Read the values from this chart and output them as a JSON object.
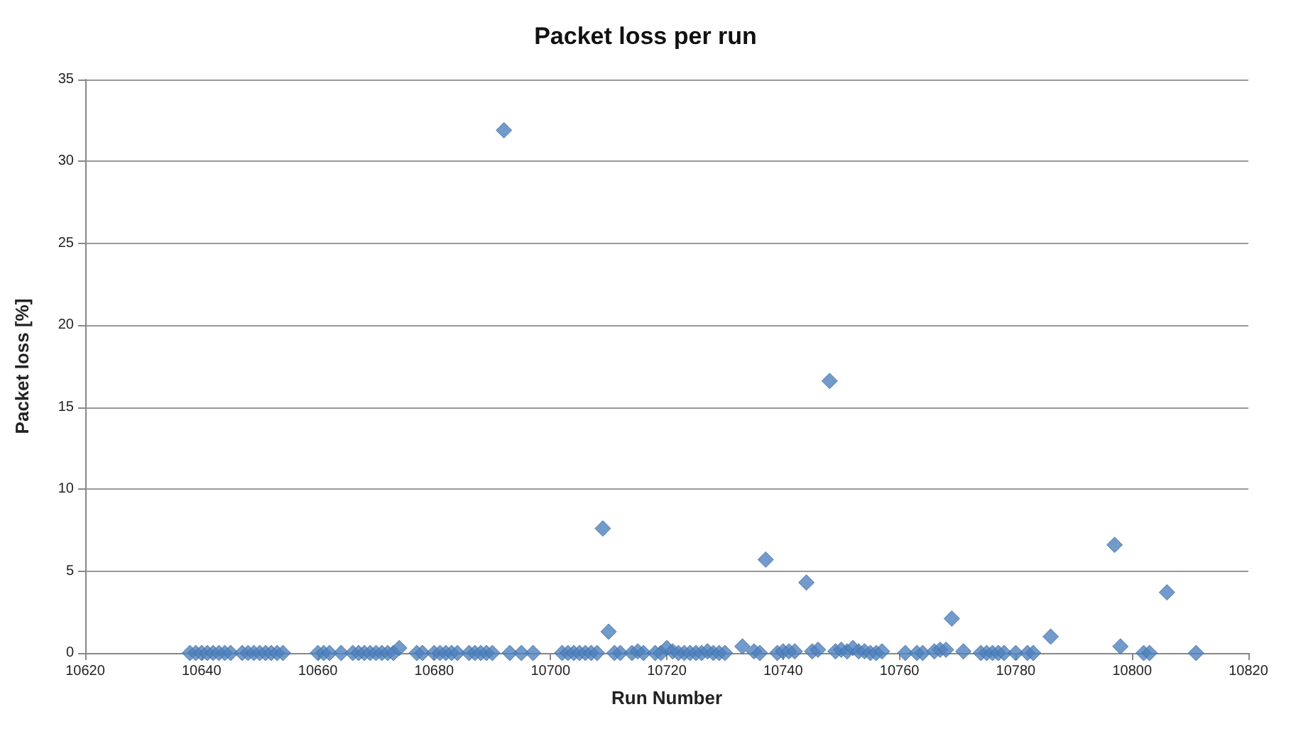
{
  "chart_data": {
    "type": "scatter",
    "title": "Packet loss per run",
    "xlabel": "Run Number",
    "ylabel": "Packet loss [%]",
    "x": [
      10638,
      10639,
      10640,
      10641,
      10642,
      10643,
      10644,
      10645,
      10647,
      10648,
      10649,
      10650,
      10651,
      10652,
      10653,
      10654,
      10660,
      10661,
      10662,
      10664,
      10666,
      10667,
      10668,
      10669,
      10670,
      10671,
      10672,
      10673,
      10674,
      10677,
      10678,
      10680,
      10681,
      10682,
      10683,
      10684,
      10686,
      10687,
      10688,
      10689,
      10690,
      10692,
      10693,
      10695,
      10697,
      10702,
      10703,
      10704,
      10705,
      10706,
      10707,
      10708,
      10709,
      10710,
      10711,
      10712,
      10714,
      10715,
      10716,
      10718,
      10719,
      10720,
      10721,
      10722,
      10723,
      10724,
      10725,
      10726,
      10727,
      10728,
      10729,
      10730,
      10733,
      10735,
      10736,
      10737,
      10739,
      10740,
      10741,
      10742,
      10744,
      10745,
      10746,
      10748,
      10749,
      10750,
      10751,
      10752,
      10753,
      10754,
      10755,
      10756,
      10757,
      10761,
      10763,
      10764,
      10766,
      10767,
      10768,
      10769,
      10771,
      10774,
      10775,
      10776,
      10777,
      10778,
      10780,
      10782,
      10783,
      10786,
      10797,
      10798,
      10802,
      10803,
      10806,
      10811
    ],
    "series": [
      {
        "color": "#4f81bd",
        "values": [
          0,
          0,
          0,
          0,
          0,
          0,
          0,
          0,
          0,
          0,
          0,
          0,
          0,
          0,
          0,
          0,
          0,
          0,
          0,
          0,
          0,
          0,
          0,
          0,
          0,
          0,
          0,
          0,
          0.3,
          0,
          0,
          0,
          0,
          0,
          0,
          0,
          0,
          0,
          0,
          0,
          0,
          31.9,
          0,
          0,
          0,
          0,
          0,
          0,
          0,
          0,
          0,
          0,
          7.6,
          1.3,
          0,
          0,
          0,
          0.1,
          0,
          0,
          0,
          0.3,
          0.1,
          0,
          0,
          0,
          0,
          0,
          0.1,
          0,
          0,
          0,
          0.4,
          0.1,
          0,
          5.7,
          0,
          0.1,
          0.1,
          0.1,
          4.3,
          0.1,
          0.2,
          16.6,
          0.1,
          0.2,
          0.1,
          0.3,
          0.1,
          0.1,
          0,
          0,
          0.1,
          0,
          0,
          0,
          0.1,
          0.2,
          0.2,
          2.1,
          0.1,
          0,
          0,
          0,
          0,
          0,
          0,
          0,
          0,
          1.0,
          6.6,
          0.4,
          0,
          0,
          3.7,
          0
        ]
      }
    ],
    "xlim": [
      10620,
      10820
    ],
    "xticks": [
      10620,
      10640,
      10660,
      10680,
      10700,
      10720,
      10740,
      10760,
      10780,
      10800,
      10820
    ],
    "ylim": [
      0,
      35
    ],
    "yticks": [
      0,
      5,
      10,
      15,
      20,
      25,
      30,
      35
    ],
    "grid": "y",
    "marker": "diamond"
  }
}
